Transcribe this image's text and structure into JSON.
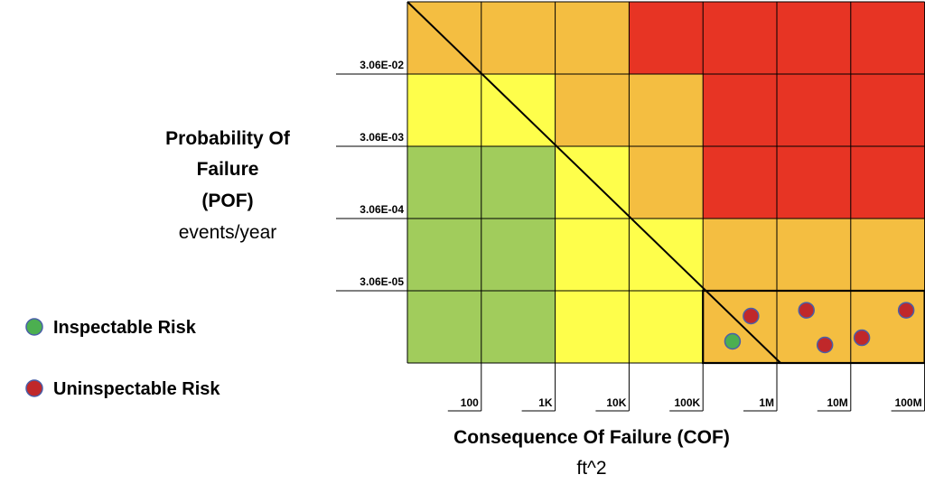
{
  "chart_data": {
    "type": "heatmap",
    "title": "",
    "y_axis": {
      "title_lines": [
        "Probability Of",
        "Failure",
        "(POF)"
      ],
      "unit": "events/year",
      "tick_labels": [
        "3.06E-02",
        "3.06E-03",
        "3.06E-04",
        "3.06E-05"
      ]
    },
    "x_axis": {
      "title": "Consequence Of Failure (COF)",
      "unit": "ft^2",
      "tick_labels": [
        "100",
        "1K",
        "10K",
        "100K",
        "1M",
        "10M",
        "100M"
      ]
    },
    "columns": 7,
    "rows": 5,
    "grid_colors": [
      [
        "orange",
        "orange",
        "orange",
        "red",
        "red",
        "red",
        "red"
      ],
      [
        "yellow",
        "yellow",
        "orange",
        "orange",
        "red",
        "red",
        "red"
      ],
      [
        "green",
        "green",
        "yellow",
        "orange",
        "red",
        "red",
        "red"
      ],
      [
        "green",
        "green",
        "yellow",
        "yellow",
        "orange",
        "orange",
        "orange"
      ],
      [
        "green",
        "green",
        "yellow",
        "yellow",
        "orange",
        "orange",
        "orange"
      ]
    ],
    "palette": {
      "green": "#a1cc5c",
      "yellow": "#fefe4b",
      "orange": "#f4be41",
      "red": "#e73424"
    },
    "points": [
      {
        "type": "inspectable",
        "col": 4.4,
        "row": 4.7
      },
      {
        "type": "uninspectable",
        "col": 4.65,
        "row": 4.35
      },
      {
        "type": "uninspectable",
        "col": 5.4,
        "row": 4.27
      },
      {
        "type": "uninspectable",
        "col": 5.65,
        "row": 4.75
      },
      {
        "type": "uninspectable",
        "col": 6.15,
        "row": 4.65
      },
      {
        "type": "uninspectable",
        "col": 6.75,
        "row": 4.27
      }
    ],
    "legend": [
      {
        "type": "inspectable",
        "label": "Inspectable Risk",
        "color": "#4caf50"
      },
      {
        "type": "uninspectable",
        "label": "Uninspectable Risk",
        "color": "#c0282a"
      }
    ],
    "point_stroke": "#4a5fa8"
  }
}
